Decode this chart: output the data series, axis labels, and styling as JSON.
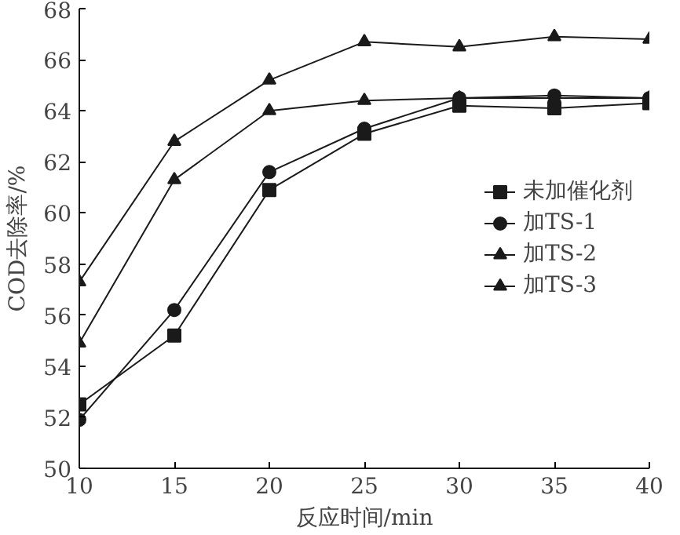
{
  "chart_data": {
    "type": "line",
    "xlabel": "反应时间/min",
    "ylabel": "COD去除率/%",
    "x": [
      10,
      15,
      20,
      25,
      30,
      35,
      40
    ],
    "series": [
      {
        "name": "未加催化剂",
        "color": "#1a1a1a",
        "marker": "square",
        "values": [
          52.5,
          55.2,
          60.9,
          63.1,
          64.2,
          64.1,
          64.3
        ]
      },
      {
        "name": "加TS-1",
        "color": "#1a1a1a",
        "marker": "circle",
        "values": [
          51.9,
          56.2,
          61.6,
          63.3,
          64.5,
          64.6,
          64.5
        ]
      },
      {
        "name": "加TS-2",
        "color": "#1a1a1a",
        "marker": "triangle",
        "values": [
          57.3,
          62.8,
          65.2,
          66.7,
          66.5,
          66.9,
          66.8
        ]
      },
      {
        "name": "加TS-3",
        "color": "#1a1a1a",
        "marker": "triangle",
        "values": [
          54.9,
          61.3,
          64.0,
          64.4,
          64.5,
          64.5,
          64.5
        ]
      }
    ],
    "xlim": [
      10,
      40
    ],
    "xticks": [
      10,
      15,
      20,
      25,
      30,
      35,
      40
    ],
    "ylim": [
      50,
      68
    ],
    "yticks": [
      50,
      52,
      54,
      56,
      58,
      60,
      62,
      64,
      66,
      68
    ],
    "grid": false,
    "legend": "right",
    "line_style": "solid"
  }
}
